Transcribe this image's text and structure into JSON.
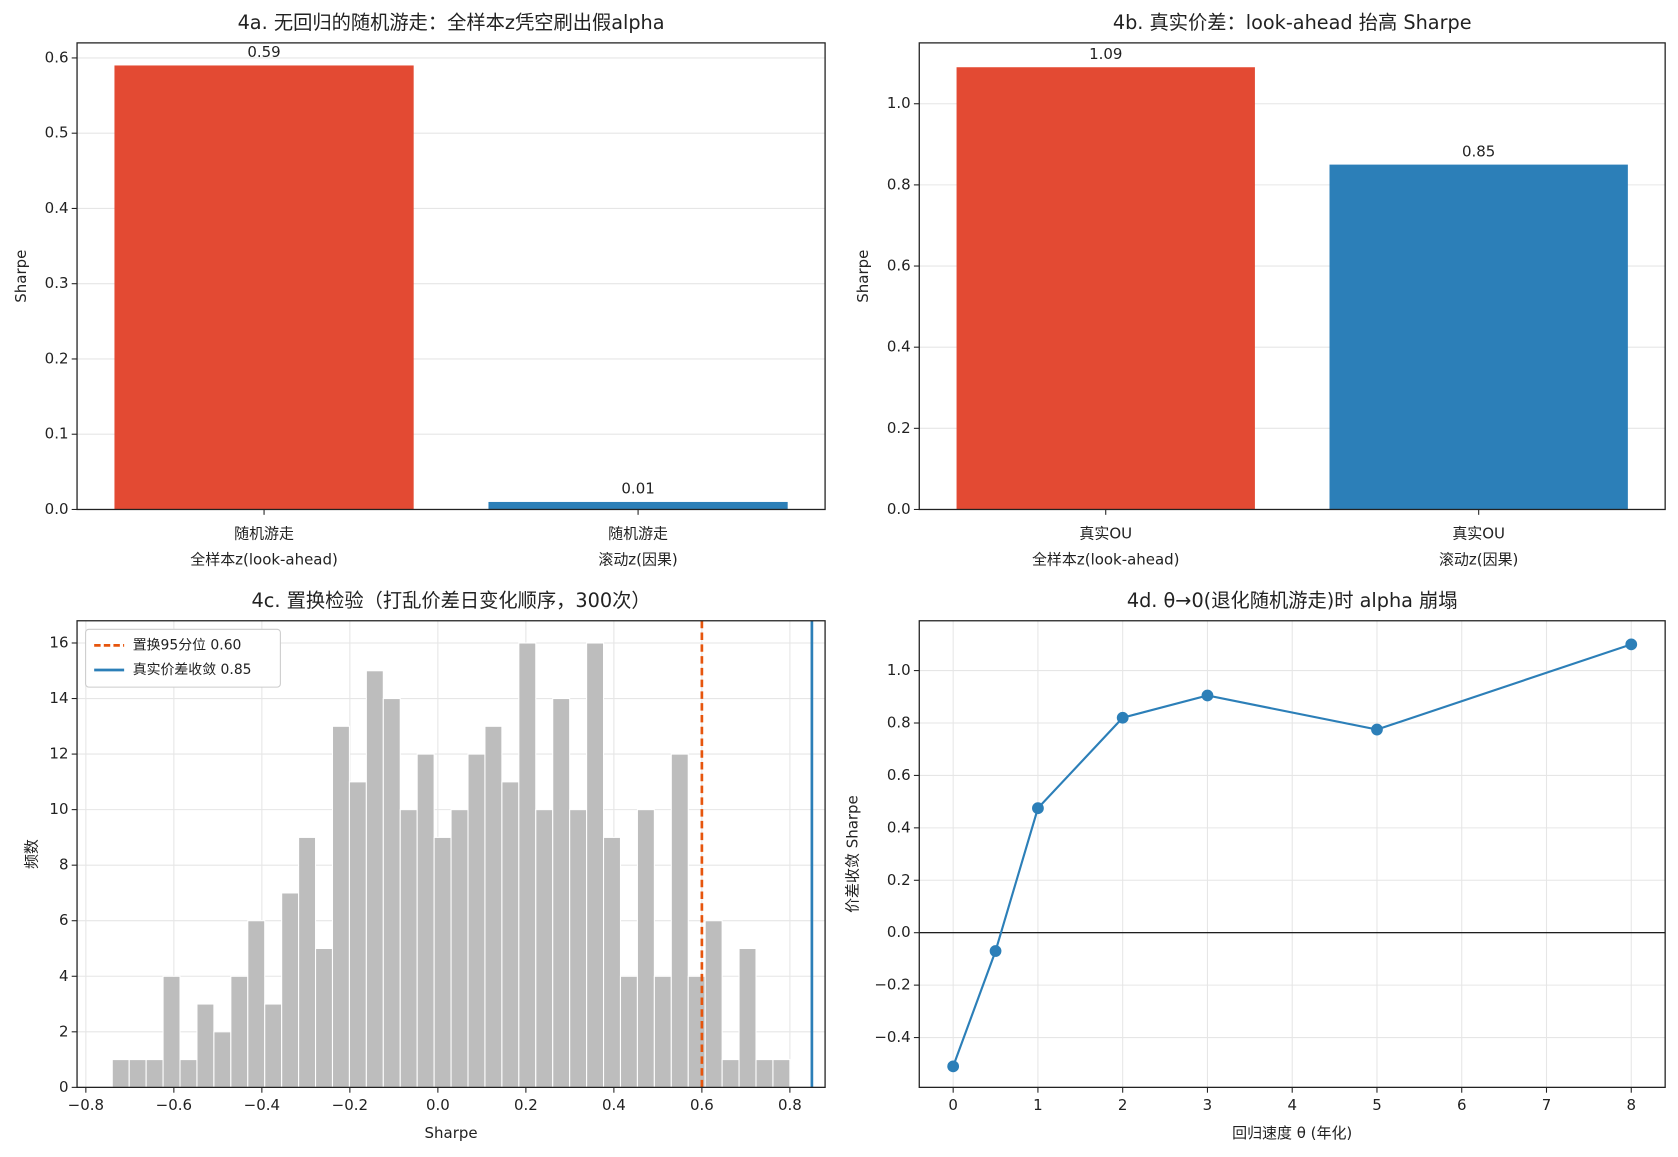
{
  "chart_data": [
    {
      "type": "bar",
      "title": "4a. 无回归的随机游走：全样本z凭空刷出假alpha",
      "ylabel": "Sharpe",
      "categories": [
        [
          "随机游走",
          "全样本z(look-ahead)"
        ],
        [
          "随机游走",
          "滚动z(因果)"
        ]
      ],
      "values": [
        0.59,
        0.01
      ],
      "colors": [
        "#e34a33",
        "#2c7fb8"
      ],
      "ylim": [
        0,
        0.62
      ],
      "yticks": [
        {
          "value": 0,
          "label": "0.0"
        },
        0.1,
        0.2,
        0.3,
        0.4,
        0.5,
        0.6
      ],
      "grid": "y"
    },
    {
      "type": "bar",
      "title": "4b. 真实价差：look-ahead 抬高 Sharpe",
      "ylabel": "Sharpe",
      "categories": [
        [
          "真实OU",
          "全样本z(look-ahead)"
        ],
        [
          "真实OU",
          "滚动z(因果)"
        ]
      ],
      "values": [
        1.09,
        0.85
      ],
      "colors": [
        "#e34a33",
        "#2c7fb8"
      ],
      "ylim": [
        0,
        1.15
      ],
      "yticks": [
        {
          "value": 0,
          "label": "0.0"
        },
        0.2,
        0.4,
        0.6,
        0.8,
        {
          "value": 1,
          "label": "1.0"
        }
      ],
      "grid": "y"
    },
    {
      "type": "histogram",
      "title": "4c. 置换检验（打乱价差日变化顺序，300次）",
      "xlabel": "Sharpe",
      "ylabel": "频数",
      "bins": [
        -0.74,
        -0.7015,
        -0.663,
        -0.6245,
        -0.586,
        -0.5475,
        -0.509,
        -0.4705,
        -0.432,
        -0.3935,
        -0.355,
        -0.3165,
        -0.278,
        -0.2395,
        -0.201,
        -0.1625,
        -0.124,
        -0.0855,
        -0.047,
        -0.0085,
        0.03,
        0.0685,
        0.107,
        0.1455,
        0.184,
        0.2225,
        0.261,
        0.2995,
        0.338,
        0.3765,
        0.415,
        0.4535,
        0.492,
        0.5305,
        0.569,
        0.6075,
        0.646,
        0.6845,
        0.723,
        0.7615,
        0.8
      ],
      "values": [
        1,
        1,
        1,
        4,
        1,
        3,
        2,
        4,
        6,
        3,
        7,
        9,
        5,
        13,
        11,
        15,
        14,
        10,
        12,
        9,
        10,
        12,
        13,
        11,
        16,
        10,
        14,
        10,
        16,
        9,
        4,
        10,
        4,
        12,
        4,
        6,
        1,
        5,
        1,
        1
      ],
      "color": "#bdbdbd",
      "vlines": [
        {
          "name": "置换95分位 0.60",
          "value": 0.6,
          "color": "#e6550d",
          "dashed": true
        },
        {
          "name": "真实价差收敛 0.85",
          "value": 0.85,
          "color": "#2c7fb8",
          "dashed": false
        }
      ],
      "legend": "upper left",
      "xlim": [
        -0.82,
        0.88
      ],
      "xticks": [
        {
          "value": -0.8,
          "label": "−0.8"
        },
        {
          "value": -0.6,
          "label": "−0.6"
        },
        {
          "value": -0.4,
          "label": "−0.4"
        },
        {
          "value": -0.2,
          "label": "−0.2"
        },
        {
          "value": 0,
          "label": "0.0"
        },
        0.2,
        0.4,
        0.6,
        0.8
      ],
      "ylim": [
        0,
        16.8
      ],
      "yticks": [
        0,
        2,
        4,
        6,
        8,
        10,
        12,
        14,
        16
      ],
      "grid": "both"
    },
    {
      "type": "line",
      "title": "4d. θ→0(退化随机游走)时 alpha 崩塌",
      "xlabel": "回归速度 θ (年化)",
      "ylabel": "价差收敛 Sharpe",
      "x": [
        0,
        0.5,
        1,
        2,
        3,
        5,
        8
      ],
      "values": [
        -0.51,
        -0.07,
        0.475,
        0.82,
        0.905,
        0.775,
        1.1
      ],
      "color": "#2c7fb8",
      "hline": 0,
      "xlim": [
        -0.4,
        8.4
      ],
      "xticks": [
        0,
        1,
        2,
        3,
        4,
        5,
        6,
        7,
        8
      ],
      "ylim": [
        -0.59,
        1.19
      ],
      "yticks": [
        {
          "value": -0.4,
          "label": "−0.4"
        },
        {
          "value": -0.2,
          "label": "−0.2"
        },
        {
          "value": 0,
          "label": "0.0"
        },
        0.2,
        0.4,
        0.6,
        0.8,
        {
          "value": 1,
          "label": "1.0"
        }
      ],
      "grid": "both"
    }
  ]
}
